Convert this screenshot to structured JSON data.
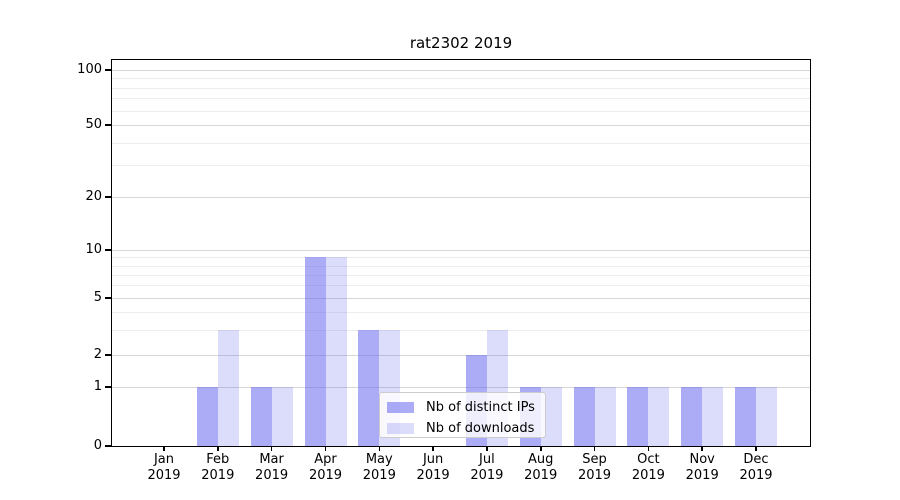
{
  "title": "rat2302 2019",
  "chart_data": {
    "type": "bar",
    "title": "rat2302 2019",
    "categories": [
      "Jan 2019",
      "Feb 2019",
      "Mar 2019",
      "Apr 2019",
      "May 2019",
      "Jun 2019",
      "Jul 2019",
      "Aug 2019",
      "Sep 2019",
      "Oct 2019",
      "Nov 2019",
      "Dec 2019"
    ],
    "series": [
      {
        "name": "Nb of distinct IPs",
        "color": "#6666ee",
        "alpha": 0.55,
        "values": [
          0,
          1,
          1,
          9,
          3,
          0,
          2,
          1,
          1,
          1,
          1,
          1
        ]
      },
      {
        "name": "Nb of downloads",
        "color": "#6666ee",
        "alpha": 0.23,
        "values": [
          0,
          3,
          1,
          9,
          3,
          0,
          3,
          1,
          1,
          1,
          1,
          1
        ]
      }
    ],
    "xlabel": "",
    "ylabel": "",
    "yscale": "symlog",
    "ylim": [
      0,
      120
    ],
    "ytick_values": [
      0,
      1,
      2,
      5,
      10,
      20,
      50,
      100
    ],
    "ytick_labels": [
      "0",
      "1",
      "2",
      "5",
      "10",
      "20",
      "50",
      "100"
    ],
    "minor_ytick_values": [
      3,
      4,
      6,
      7,
      8,
      9,
      30,
      40,
      60,
      70,
      80,
      90
    ],
    "grid": "horizontal major+minor",
    "legend_position": "lower center"
  }
}
